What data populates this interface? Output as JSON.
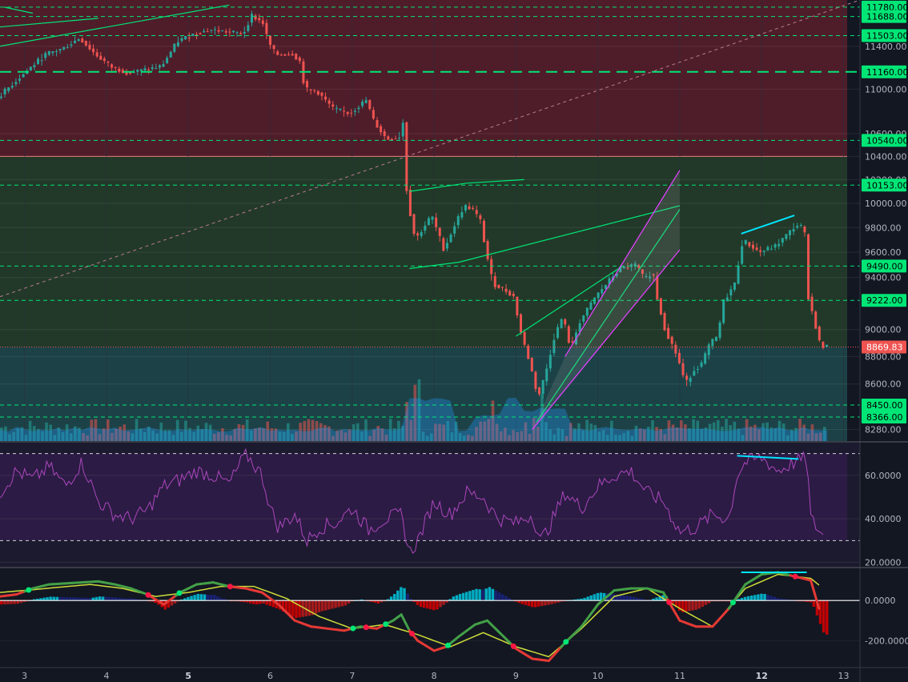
{
  "chart_data": [
    {
      "type": "candlestick",
      "panel": "price",
      "title": "",
      "y_scale": "log",
      "ylim": [
        8200,
        11850
      ],
      "xlim": [
        2.7,
        13.2
      ],
      "ticks": [
        "11400.00",
        "11000.00",
        "10600.00",
        "10400.00",
        "10200.00",
        "10000.00",
        "9800.00",
        "9600.00",
        "9400.00",
        "9000.00",
        "8800.00",
        "8600.00",
        "8280.00"
      ],
      "tick_values": [
        11400,
        11000,
        10600,
        10400,
        10200,
        10000,
        9800,
        9600,
        9400,
        9000,
        8800,
        8600,
        8280
      ],
      "last_price": "8869.83",
      "last_price_value": 8869.83,
      "colors": {
        "up": "#26a69a",
        "down": "#ef5350",
        "level": "#00e676",
        "pattern_green": "#00e676",
        "pattern_magenta": "#e040fb",
        "divergence": "#00e5ff",
        "trend_dashed": "#b87c8c"
      },
      "levels": [
        {
          "label": "11780.00",
          "value": 11780
        },
        {
          "label": "11688.00",
          "value": 11688
        },
        {
          "label": "11503.00",
          "value": 11503
        },
        {
          "label": "11160.00",
          "value": 11160,
          "style": "long-dash"
        },
        {
          "label": "10540.00",
          "value": 10540
        },
        {
          "label": "10153.00",
          "value": 10153
        },
        {
          "label": "9490.00",
          "value": 9490
        },
        {
          "label": "9222.00",
          "value": 9222
        },
        {
          "label": "8450.00",
          "value": 8450
        },
        {
          "label": "8366.00",
          "value": 8366
        }
      ],
      "zones": [
        {
          "from": 10400,
          "to": 11850,
          "color": "#5a1f2c"
        },
        {
          "from": 8869.83,
          "to": 10400,
          "color": "#26402a"
        },
        {
          "from": 8200,
          "to": 8869.83,
          "color": "#1e4a4d"
        }
      ],
      "series_path": [
        [
          2.7,
          10920
        ],
        [
          2.9,
          11060
        ],
        [
          3.1,
          11200
        ],
        [
          3.3,
          11330
        ],
        [
          3.5,
          11380
        ],
        [
          3.7,
          11480
        ],
        [
          3.9,
          11320
        ],
        [
          4.1,
          11200
        ],
        [
          4.3,
          11150
        ],
        [
          4.5,
          11180
        ],
        [
          4.7,
          11210
        ],
        [
          4.9,
          11450
        ],
        [
          5.1,
          11520
        ],
        [
          5.3,
          11560
        ],
        [
          5.5,
          11540
        ],
        [
          5.7,
          11520
        ],
        [
          5.8,
          11700
        ],
        [
          5.95,
          11620
        ],
        [
          6.0,
          11450
        ],
        [
          6.1,
          11320
        ],
        [
          6.3,
          11330
        ],
        [
          6.4,
          11250
        ],
        [
          6.45,
          11000
        ],
        [
          6.6,
          10980
        ],
        [
          6.8,
          10820
        ],
        [
          7.0,
          10780
        ],
        [
          7.2,
          10900
        ],
        [
          7.3,
          10700
        ],
        [
          7.45,
          10550
        ],
        [
          7.6,
          10560
        ],
        [
          7.65,
          10700
        ],
        [
          7.7,
          10050
        ],
        [
          7.8,
          9700
        ],
        [
          8.0,
          9900
        ],
        [
          8.15,
          9620
        ],
        [
          8.3,
          9850
        ],
        [
          8.4,
          9980
        ],
        [
          8.5,
          9950
        ],
        [
          8.6,
          9850
        ],
        [
          8.65,
          9650
        ],
        [
          8.75,
          9350
        ],
        [
          8.9,
          9300
        ],
        [
          9.0,
          9250
        ],
        [
          9.1,
          8950
        ],
        [
          9.2,
          8750
        ],
        [
          9.3,
          8500
        ],
        [
          9.4,
          8700
        ],
        [
          9.5,
          8950
        ],
        [
          9.6,
          9100
        ],
        [
          9.7,
          8850
        ],
        [
          9.8,
          9050
        ],
        [
          10.0,
          9250
        ],
        [
          10.2,
          9400
        ],
        [
          10.3,
          9470
        ],
        [
          10.5,
          9500
        ],
        [
          10.6,
          9380
        ],
        [
          10.7,
          9450
        ],
        [
          10.75,
          9250
        ],
        [
          10.85,
          9000
        ],
        [
          11.0,
          8800
        ],
        [
          11.1,
          8600
        ],
        [
          11.2,
          8700
        ],
        [
          11.3,
          8750
        ],
        [
          11.4,
          8900
        ],
        [
          11.5,
          8950
        ],
        [
          11.55,
          9200
        ],
        [
          11.7,
          9350
        ],
        [
          11.8,
          9700
        ],
        [
          12.0,
          9600
        ],
        [
          12.2,
          9650
        ],
        [
          12.35,
          9750
        ],
        [
          12.45,
          9820
        ],
        [
          12.55,
          9800
        ],
        [
          12.6,
          9250
        ],
        [
          12.75,
          8869.83
        ]
      ],
      "overlays": {
        "green_lines": [
          [
            [
              0.0,
              11400
            ],
            [
              3.9,
              11670
            ]
          ],
          [
            [
              0.0,
              11030
            ],
            [
              5.5,
              11800
            ]
          ],
          [
            [
              2.75,
              11780
            ],
            [
              3.1,
              11720
            ]
          ],
          [
            [
              7.7,
              10100
            ],
            [
              8.4,
              10170
            ]
          ],
          [
            [
              8.4,
              10170
            ],
            [
              9.1,
              10200
            ]
          ],
          [
            [
              7.7,
              9470
            ],
            [
              8.3,
              9520
            ]
          ],
          [
            [
              8.3,
              9520
            ],
            [
              11.0,
              9980
            ]
          ],
          [
            [
              9.25,
              8330
            ],
            [
              11.0,
              9950
            ]
          ],
          [
            [
              9.0,
              8950
            ],
            [
              10.3,
              9490
            ]
          ]
        ],
        "magenta_channel": [
          [
            [
              9.2,
              8280
            ],
            [
              11.0,
              9620
            ]
          ],
          [
            [
              9.6,
              8800
            ],
            [
              11.0,
              10280
            ]
          ]
        ],
        "trend_dashed": [
          [
            [
              2.7,
              9250
            ],
            [
              13.2,
              11850
            ]
          ]
        ],
        "divergence_price": [
          [
            [
              11.75,
              9750
            ],
            [
              12.4,
              9900
            ]
          ]
        ]
      },
      "volume_bars": {
        "max_height_fraction": 0.2
      }
    },
    {
      "type": "line",
      "panel": "rsi",
      "ylim": [
        18,
        75
      ],
      "ticks": [
        "60.0000",
        "40.0000",
        "20.0000"
      ],
      "tick_values": [
        60,
        40,
        20
      ],
      "bands": [
        70,
        30
      ],
      "colors": {
        "line": "#ab47bc",
        "band_fill": "#311b4a"
      },
      "series": [
        {
          "x": [
            2.7,
            2.9,
            3.1,
            3.3,
            3.5,
            3.7,
            3.9,
            4.1,
            4.3,
            4.5,
            4.7,
            4.9,
            5.1,
            5.3,
            5.5,
            5.7,
            5.9,
            6.0,
            6.1,
            6.3,
            6.45,
            6.6,
            6.8,
            7.0,
            7.2,
            7.4,
            7.6,
            7.7,
            7.8,
            8.0,
            8.2,
            8.4,
            8.6,
            8.7,
            8.8,
            9.0,
            9.2,
            9.3,
            9.4,
            9.6,
            9.8,
            10.0,
            10.2,
            10.4,
            10.6,
            10.8,
            11.0,
            11.2,
            11.4,
            11.6,
            11.7,
            11.8,
            12.0,
            12.2,
            12.4,
            12.55,
            12.6,
            12.75
          ],
          "y": [
            52,
            62,
            58,
            64,
            55,
            66,
            48,
            42,
            40,
            44,
            55,
            58,
            62,
            60,
            56,
            70,
            60,
            45,
            36,
            42,
            30,
            36,
            38,
            45,
            35,
            40,
            42,
            24,
            30,
            48,
            42,
            52,
            50,
            44,
            40,
            38,
            42,
            30,
            36,
            52,
            45,
            55,
            60,
            62,
            52,
            48,
            34,
            36,
            42,
            40,
            60,
            66,
            68,
            62,
            66,
            68,
            40,
            32
          ]
        }
      ],
      "overlays": {
        "divergence": [
          [
            [
              11.7,
              69
            ],
            [
              12.45,
              67.5
            ]
          ]
        ]
      }
    },
    {
      "type": "bar+line",
      "panel": "macd",
      "ylim": [
        -330,
        160
      ],
      "ticks": [
        "0.0000",
        "-200.0000"
      ],
      "tick_values": [
        0,
        -200
      ],
      "colors": {
        "macd_line": "#e53935",
        "macd_line_up": "#43a047",
        "signal": "#cddc39",
        "hist_pos_strong": "#00bcd4",
        "hist_pos_weak": "#1a237e",
        "hist_neg_strong": "#d50000",
        "hist_neg_weak": "#b71c1c",
        "zero": "#ffffff",
        "divergence": "#00e5ff"
      },
      "series": [
        {
          "name": "macd",
          "x": [
            2.7,
            2.9,
            3.1,
            3.3,
            3.5,
            3.7,
            3.9,
            4.1,
            4.3,
            4.5,
            4.7,
            4.9,
            5.1,
            5.3,
            5.5,
            5.7,
            5.9,
            6.1,
            6.3,
            6.5,
            6.7,
            6.9,
            7.1,
            7.3,
            7.5,
            7.6,
            7.7,
            7.8,
            8.0,
            8.15,
            8.3,
            8.5,
            8.65,
            8.8,
            9.0,
            9.2,
            9.4,
            9.6,
            9.8,
            10.0,
            10.2,
            10.4,
            10.6,
            10.8,
            11.0,
            11.2,
            11.4,
            11.6,
            11.8,
            12.0,
            12.2,
            12.4,
            12.6,
            12.75
          ],
          "y": [
            20,
            30,
            60,
            80,
            85,
            90,
            95,
            80,
            60,
            30,
            -20,
            40,
            80,
            90,
            70,
            60,
            40,
            -20,
            -100,
            -130,
            -140,
            -150,
            -130,
            -140,
            -100,
            -70,
            -150,
            -200,
            -250,
            -230,
            -180,
            -120,
            -100,
            -160,
            -240,
            -290,
            -300,
            -210,
            -130,
            -20,
            50,
            60,
            60,
            40,
            -100,
            -130,
            -130,
            -40,
            80,
            130,
            140,
            120,
            100,
            -110
          ]
        },
        {
          "name": "signal",
          "x": [
            2.7,
            3.0,
            3.4,
            3.8,
            4.2,
            4.6,
            5.0,
            5.4,
            5.8,
            6.2,
            6.6,
            7.0,
            7.4,
            7.8,
            8.2,
            8.6,
            9.0,
            9.4,
            9.8,
            10.2,
            10.6,
            11.0,
            11.4,
            11.8,
            12.2,
            12.6,
            12.75
          ],
          "y": [
            40,
            50,
            65,
            80,
            60,
            20,
            40,
            70,
            70,
            10,
            -80,
            -140,
            -120,
            -170,
            -230,
            -160,
            -230,
            -280,
            -140,
            20,
            60,
            -40,
            -130,
            60,
            130,
            110,
            60
          ]
        }
      ],
      "histogram_x_step": 0.04,
      "overlays": {
        "divergence": [
          [
            [
              11.75,
              140
            ],
            [
              12.55,
              140
            ]
          ]
        ]
      }
    }
  ],
  "x_axis": {
    "labels": [
      {
        "text": "3",
        "x": 3
      },
      {
        "text": "4",
        "x": 4
      },
      {
        "text": "5",
        "x": 5,
        "bold": true
      },
      {
        "text": "6",
        "x": 6
      },
      {
        "text": "7",
        "x": 7
      },
      {
        "text": "8",
        "x": 8
      },
      {
        "text": "9",
        "x": 9
      },
      {
        "text": "10",
        "x": 10
      },
      {
        "text": "11",
        "x": 11
      },
      {
        "text": "12",
        "x": 12,
        "bold": true
      },
      {
        "text": "13",
        "x": 13
      }
    ]
  }
}
